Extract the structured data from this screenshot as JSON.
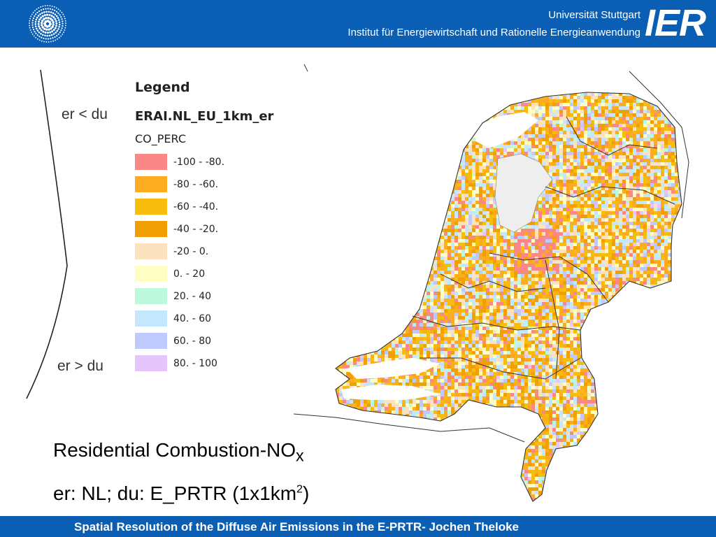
{
  "header": {
    "university": "Universität Stuttgart",
    "institute": "Institut für Energiewirtschaft und Rationelle Energieanwendung",
    "logo_mark": "IER",
    "logo_icon": "university-seal-icon",
    "background_color": "#0a5fb4"
  },
  "axis_notes": {
    "top": "er < du",
    "bottom": "er > du"
  },
  "legend": {
    "title": "Legend",
    "layer": "ERAI.NL_EU_1km_er",
    "field": "CO_PERC",
    "classes": [
      {
        "label": "-100 -  -80.",
        "color": "#f98886"
      },
      {
        "label": "-80 -  -60.",
        "color": "#fdac21"
      },
      {
        "label": "-60 -  -40.",
        "color": "#f6bd0c"
      },
      {
        "label": "-40 - -20.",
        "color": "#f0a002"
      },
      {
        "label": "-20 - 0.",
        "color": "#fde2bf"
      },
      {
        "label": "0. - 20",
        "color": "#ffffc5"
      },
      {
        "label": "20. - 40",
        "color": "#bff9dd"
      },
      {
        "label": "40. - 60",
        "color": "#c5e7fd"
      },
      {
        "label": "60. - 80",
        "color": "#c0c9fb"
      },
      {
        "label": "80. - 100",
        "color": "#e5c5fc"
      }
    ]
  },
  "caption": {
    "line1_main": "Residential Combustion-NO",
    "line1_sub": "x",
    "line2_main": "er: NL; du: E_PRTR (1x1km",
    "line2_sup": "2",
    "line2_end": ")"
  },
  "footer": {
    "text": "Spatial Resolution of the Diffuse Air Emissions in the E-PRTR- Jochen Theloke"
  }
}
